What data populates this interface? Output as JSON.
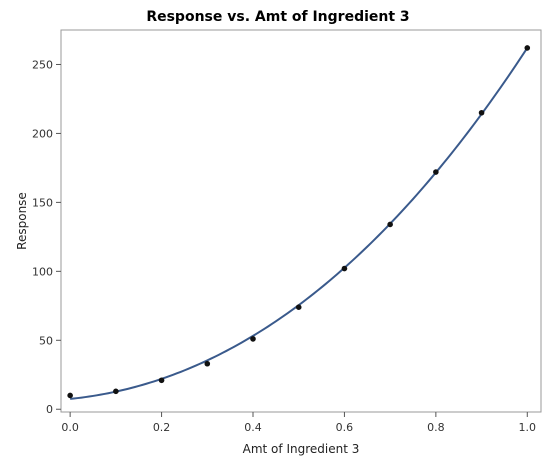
{
  "chart_data": {
    "type": "scatter",
    "title": "Response vs. Amt of Ingredient 3",
    "xlabel": "Amt of Ingredient 3",
    "ylabel": "Response",
    "xlim": [
      -0.02,
      1.03
    ],
    "ylim": [
      -2,
      275
    ],
    "xticks": [
      0.0,
      0.2,
      0.4,
      0.6,
      0.8,
      1.0
    ],
    "xtick_labels": [
      "0.0",
      "0.2",
      "0.4",
      "0.6",
      "0.8",
      "1.0"
    ],
    "yticks": [
      0,
      50,
      100,
      150,
      200,
      250
    ],
    "ytick_labels": [
      "0",
      "50",
      "100",
      "150",
      "200",
      "250"
    ],
    "grid": false,
    "points": [
      {
        "x": 0.0,
        "y": 10
      },
      {
        "x": 0.1,
        "y": 13
      },
      {
        "x": 0.2,
        "y": 21
      },
      {
        "x": 0.3,
        "y": 33
      },
      {
        "x": 0.4,
        "y": 51
      },
      {
        "x": 0.5,
        "y": 74
      },
      {
        "x": 0.6,
        "y": 102
      },
      {
        "x": 0.7,
        "y": 134
      },
      {
        "x": 0.8,
        "y": 172
      },
      {
        "x": 0.9,
        "y": 215
      },
      {
        "x": 1.0,
        "y": 262
      }
    ],
    "fit_curve": {
      "type": "polynomial",
      "coefficients": [
        7.5,
        33.5,
        189.0,
        32.0
      ],
      "color": "#3a5a8c"
    },
    "point_color": "#111111"
  }
}
